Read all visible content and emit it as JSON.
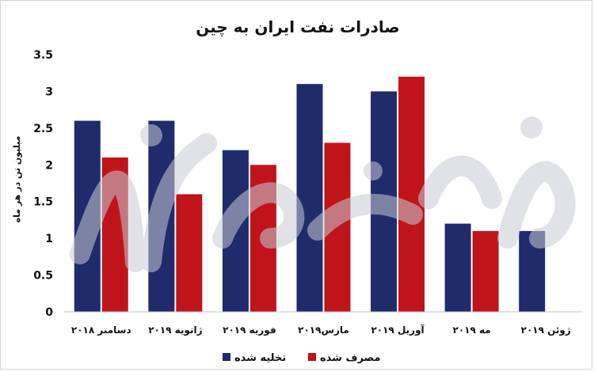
{
  "chart_data": {
    "type": "bar",
    "title": "صادرات نفت ایران به چین",
    "ylabel": "میلیون تن در هر ماه",
    "xlabel": "",
    "ylim": [
      0,
      3.5
    ],
    "yticks": [
      "0",
      "0.5",
      "1",
      "1.5",
      "2",
      "2.5",
      "3",
      "3.5"
    ],
    "categories": [
      "دسامبر ۲۰۱۸",
      "ژانویه ۲۰۱۹",
      "فوریه ۲۰۱۹",
      "مارس۲۰۱۹",
      "آوریل ۲۰۱۹",
      "مه ۲۰۱۹",
      "ژوئن ۲۰۱۹"
    ],
    "series": [
      {
        "name": "تخلیه شده",
        "color": "#1f2b6b",
        "values": [
          2.6,
          2.6,
          2.2,
          3.1,
          3.0,
          1.2,
          1.1
        ]
      },
      {
        "name": "مصرف شده",
        "color": "#c0141b",
        "values": [
          2.1,
          1.6,
          2.0,
          2.3,
          3.2,
          1.1,
          null
        ]
      }
    ],
    "grid": false,
    "legend_position": "bottom"
  },
  "watermark": {
    "text": "دنیای اقتصاد",
    "color": "#c9ccd6"
  }
}
